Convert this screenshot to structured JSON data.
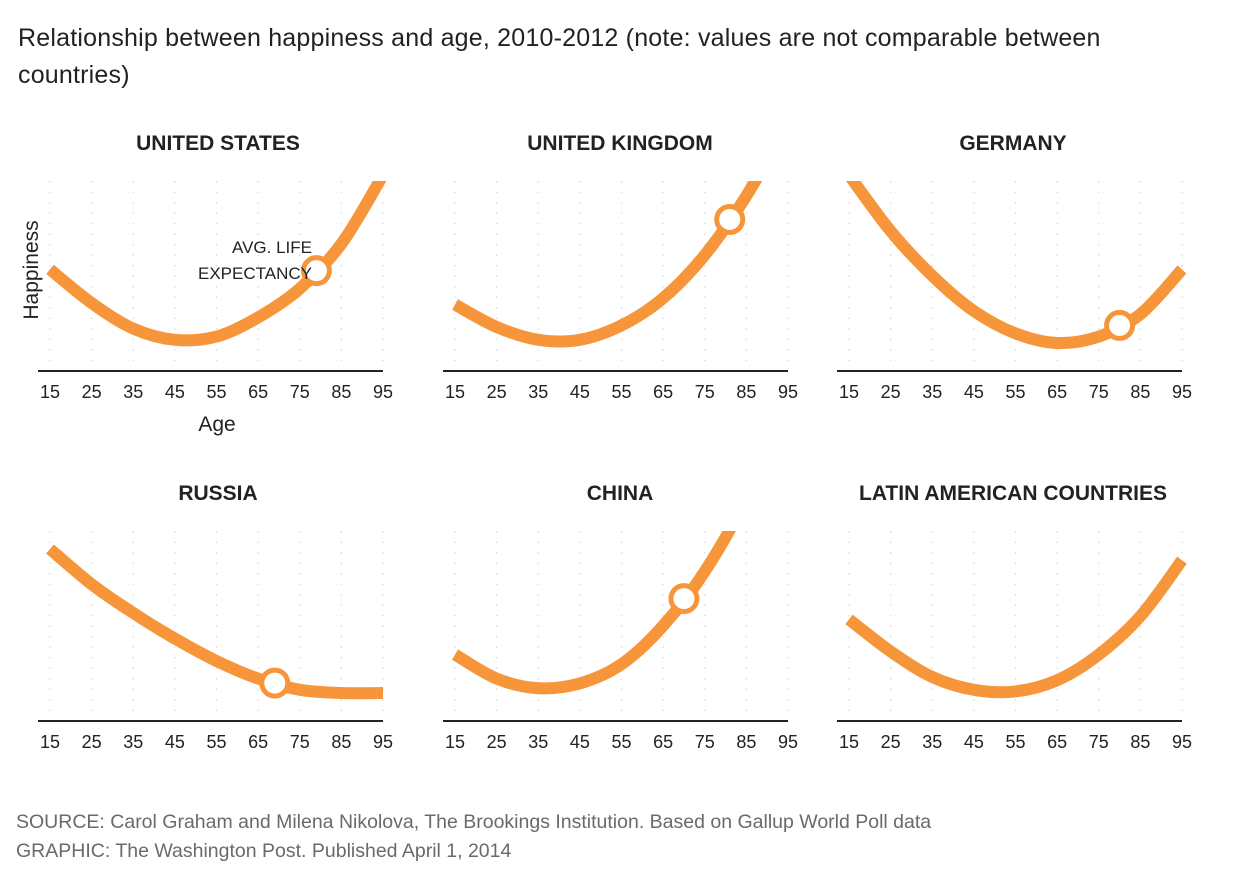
{
  "subtitle": "Relationship between happiness and age, 2010-2012 (note: values are not comparable between countries)",
  "axis": {
    "xlabel": "Age",
    "ylabel": "Happiness",
    "xticks": [
      15,
      25,
      35,
      45,
      55,
      65,
      75,
      85,
      95
    ],
    "xlim": [
      15,
      95
    ]
  },
  "annotation": {
    "line1": "AVG. LIFE",
    "line2": "EXPECTANCY"
  },
  "colors": {
    "curve": "#f7953a",
    "axis": "#222222",
    "grid": "#d9d9d9",
    "marker_fill": "#ffffff"
  },
  "chart_data": [
    {
      "type": "line",
      "title": "UNITED STATES",
      "life_expectancy": 79,
      "x": [
        15,
        25,
        35,
        45,
        55,
        65,
        75,
        85,
        95
      ],
      "y": [
        0.56,
        0.35,
        0.19,
        0.12,
        0.14,
        0.26,
        0.44,
        0.72,
        1.15
      ]
    },
    {
      "type": "line",
      "title": "UNITED KINGDOM",
      "life_expectancy": 81,
      "x": [
        15,
        25,
        35,
        45,
        55,
        65,
        75,
        85,
        95
      ],
      "y": [
        0.34,
        0.2,
        0.12,
        0.12,
        0.21,
        0.38,
        0.65,
        1.02,
        1.48
      ]
    },
    {
      "type": "line",
      "title": "GERMANY",
      "life_expectancy": 80,
      "x": [
        15,
        25,
        35,
        45,
        55,
        65,
        75,
        85,
        95
      ],
      "y": [
        1.15,
        0.8,
        0.52,
        0.3,
        0.16,
        0.1,
        0.14,
        0.28,
        0.56
      ]
    },
    {
      "type": "line",
      "title": "RUSSIA",
      "life_expectancy": 69,
      "x": [
        15,
        25,
        35,
        45,
        55,
        65,
        75,
        85,
        95
      ],
      "y": [
        1.0,
        0.78,
        0.6,
        0.44,
        0.3,
        0.19,
        0.12,
        0.1,
        0.1
      ]
    },
    {
      "type": "line",
      "title": "CHINA",
      "life_expectancy": 70,
      "x": [
        15,
        25,
        35,
        45,
        55,
        65,
        75,
        85,
        95
      ],
      "y": [
        0.34,
        0.19,
        0.13,
        0.16,
        0.28,
        0.52,
        0.86,
        1.32,
        1.95
      ]
    },
    {
      "type": "line",
      "title": "LATIN AMERICAN COUNTRIES",
      "life_expectancy": null,
      "x": [
        15,
        25,
        35,
        45,
        55,
        65,
        75,
        85,
        95
      ],
      "y": [
        0.56,
        0.36,
        0.2,
        0.12,
        0.11,
        0.18,
        0.34,
        0.58,
        0.93
      ]
    }
  ],
  "footer": {
    "source": "SOURCE: Carol Graham and Milena Nikolova, The Brookings Institution. Based on Gallup World Poll data",
    "graphic": "GRAPHIC: The Washington Post. Published April 1, 2014"
  }
}
